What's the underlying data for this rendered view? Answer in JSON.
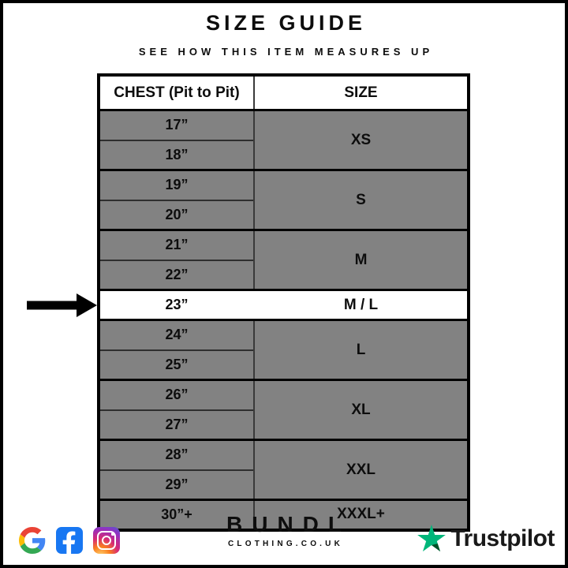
{
  "header": {
    "title": "SIZE GUIDE",
    "subtitle": "SEE HOW THIS ITEM MEASURES UP"
  },
  "table": {
    "columns": [
      "CHEST (Pit to Pit)",
      "SIZE"
    ],
    "groups": [
      {
        "measurements": [
          "17”",
          "18”"
        ],
        "size": "XS",
        "highlight": false
      },
      {
        "measurements": [
          "19”",
          "20”"
        ],
        "size": "S",
        "highlight": false
      },
      {
        "measurements": [
          "21”",
          "22”"
        ],
        "size": "M",
        "highlight": false
      },
      {
        "measurements": [
          "23”"
        ],
        "size": "M / L",
        "highlight": true
      },
      {
        "measurements": [
          "24”",
          "25”"
        ],
        "size": "L",
        "highlight": false
      },
      {
        "measurements": [
          "26”",
          "27”"
        ],
        "size": "XL",
        "highlight": false
      },
      {
        "measurements": [
          "28”",
          "29”"
        ],
        "size": "XXL",
        "highlight": false
      },
      {
        "measurements": [
          "30”+"
        ],
        "size": "XXXL+",
        "highlight": false
      }
    ],
    "highlighted_measurement": "23”",
    "highlighted_size": "M / L"
  },
  "footer": {
    "brand_name": "BUNDL",
    "brand_domain": "CLOTHING.CO.UK",
    "trustpilot_label": "Trustpilot",
    "social_icons": [
      "google-icon",
      "facebook-icon",
      "instagram-icon"
    ]
  },
  "colors": {
    "row_gray": "#828282",
    "highlight_row": "#FFFFFF",
    "border_black": "#000000",
    "facebook_blue": "#1877F2",
    "google_blue": "#4285F4",
    "google_red": "#EA4335",
    "google_yellow": "#FBBC05",
    "google_green": "#34A853",
    "instagram_gradient": [
      "#FEDA75",
      "#FA7E1E",
      "#D62976",
      "#962FBF",
      "#4F5BD5"
    ],
    "trustpilot_green": "#00B67A",
    "trustpilot_dark_green": "#005128",
    "text_black": "#0d0d0d"
  },
  "chart_data": {
    "type": "table",
    "title": "SIZE GUIDE",
    "subtitle": "SEE HOW THIS ITEM MEASURES UP",
    "columns": [
      "CHEST (Pit to Pit)",
      "SIZE"
    ],
    "rows": [
      [
        "17”",
        "XS"
      ],
      [
        "18”",
        "XS"
      ],
      [
        "19”",
        "S"
      ],
      [
        "20”",
        "S"
      ],
      [
        "21”",
        "M"
      ],
      [
        "22”",
        "M"
      ],
      [
        "23”",
        "M / L"
      ],
      [
        "24”",
        "L"
      ],
      [
        "25”",
        "L"
      ],
      [
        "26”",
        "XL"
      ],
      [
        "27”",
        "XL"
      ],
      [
        "28”",
        "XXL"
      ],
      [
        "29”",
        "XXL"
      ],
      [
        "30”+",
        "XXXL+"
      ]
    ],
    "highlighted_row": [
      "23”",
      "M / L"
    ],
    "layout_hints": {
      "size_cells_merged_per_pair": true,
      "highlight_style": "white row with left arrow"
    }
  }
}
